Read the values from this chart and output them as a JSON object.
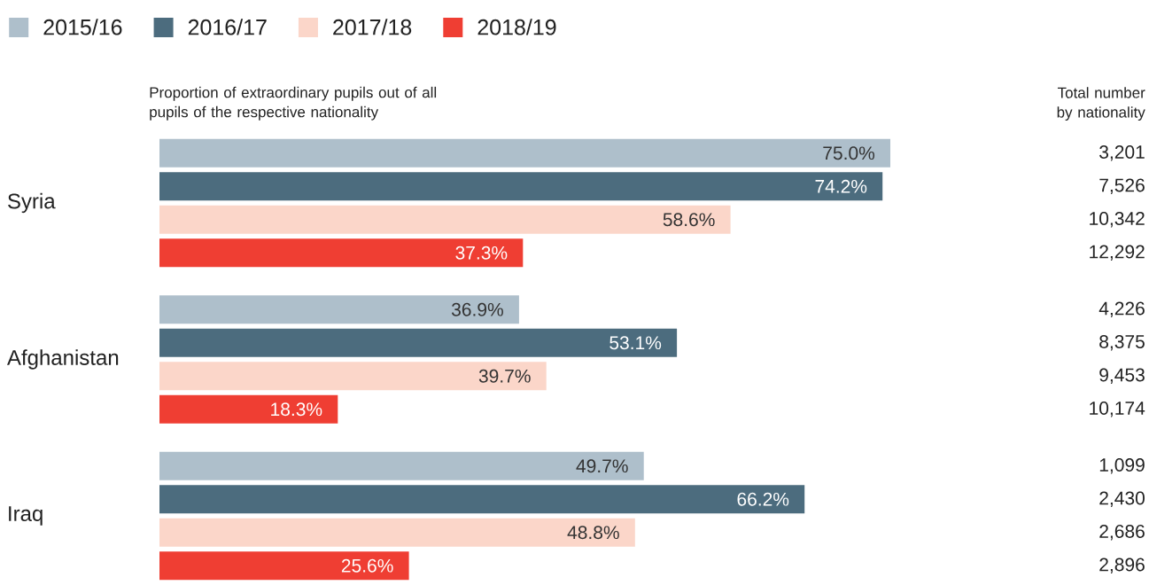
{
  "chart_data": {
    "type": "bar",
    "orientation": "horizontal",
    "xlabel": "Proportion of extraordinary pupils out of all pupils of the respective nationality",
    "categories": [
      "Syria",
      "Afghanistan",
      "Iraq"
    ],
    "series": [
      {
        "name": "2015/16",
        "color": "#aebfcb",
        "values": [
          75.0,
          36.9,
          49.7
        ],
        "value_labels": [
          "75.0%",
          "36.9%",
          "49.7%"
        ]
      },
      {
        "name": "2016/17",
        "color": "#4c6c7e",
        "values": [
          74.2,
          53.1,
          66.2
        ],
        "value_labels": [
          "74.2%",
          "53.1%",
          "66.2%"
        ]
      },
      {
        "name": "2017/18",
        "color": "#fbd6c9",
        "values": [
          58.6,
          39.7,
          48.8
        ],
        "value_labels": [
          "58.6%",
          "39.7%",
          "48.8%"
        ]
      },
      {
        "name": "2018/19",
        "color": "#ef3e33",
        "values": [
          37.3,
          18.3,
          25.6
        ],
        "value_labels": [
          "37.3%",
          "18.3%",
          "25.6%"
        ]
      }
    ],
    "legend": "top left",
    "annotations": [
      "Total number by nationality",
      "3,201",
      "7,526",
      "10,342",
      "12,292",
      "4,226",
      "8,375",
      "9,453",
      "10,174",
      "1,099",
      "2,430",
      "2,686",
      "2,896"
    ]
  }
}
